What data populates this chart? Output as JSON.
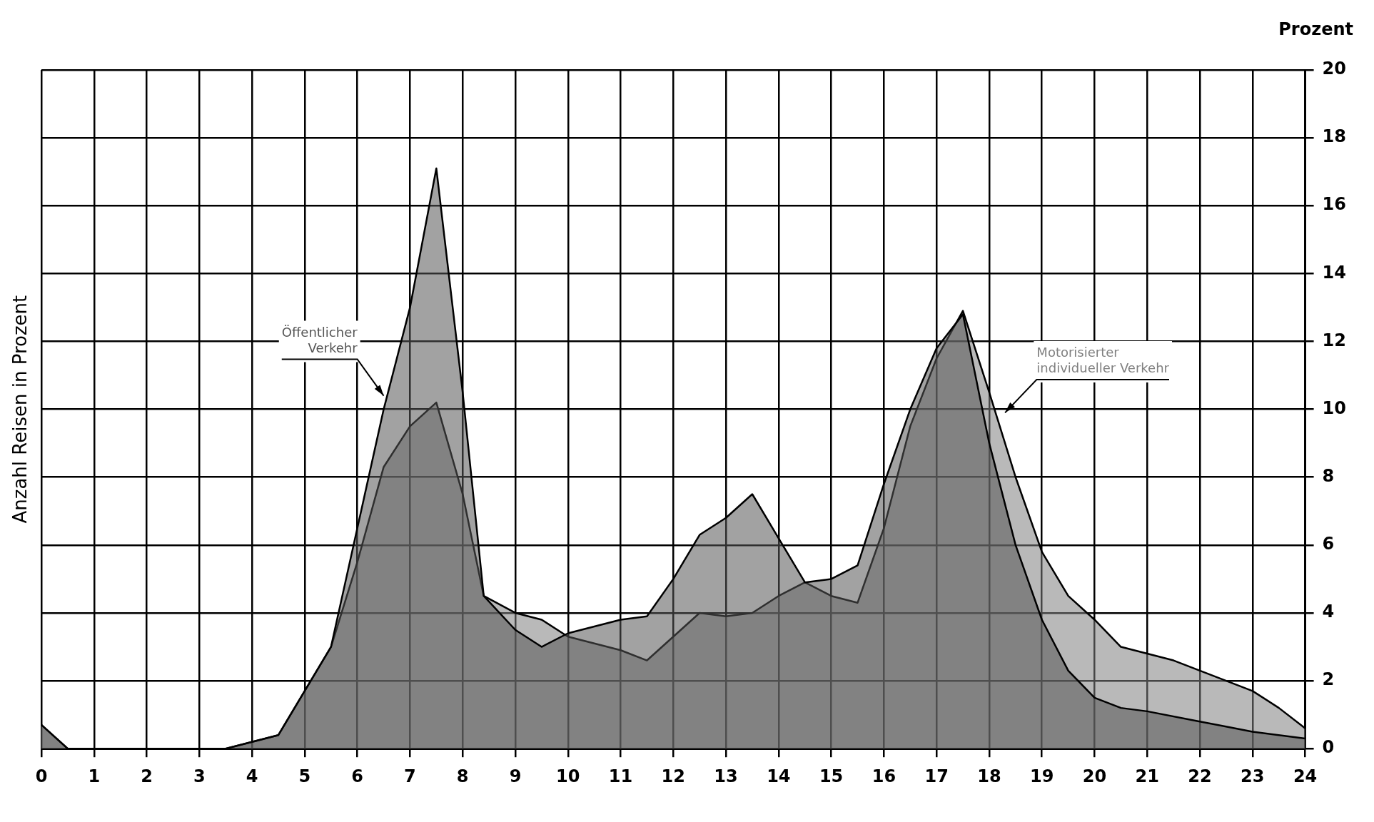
{
  "chart_data": {
    "type": "area",
    "ylabel": "Anzahl Reisen in Prozent",
    "annotations": [
      "Prozent"
    ],
    "xlim": [
      0,
      24
    ],
    "xticks": [
      0,
      1,
      2,
      3,
      4,
      5,
      6,
      7,
      8,
      9,
      10,
      11,
      12,
      13,
      14,
      15,
      16,
      17,
      18,
      19,
      20,
      21,
      22,
      23,
      24
    ],
    "ylim": [
      0,
      20
    ],
    "yticks": [
      0,
      2,
      4,
      6,
      8,
      10,
      12,
      14,
      16,
      18,
      20
    ],
    "grid": true,
    "legend": false,
    "series": [
      {
        "name": "Öffentlicher Verkehr",
        "color": "#555555",
        "x": [
          0,
          0.5,
          1,
          2,
          3,
          3.5,
          4,
          4.5,
          5,
          5.5,
          6,
          6.5,
          7,
          7.5,
          8,
          8.4,
          9,
          9.5,
          10,
          10.5,
          11,
          11.5,
          12,
          12.5,
          13,
          13.5,
          14,
          14.5,
          15,
          15.5,
          16,
          16.5,
          17,
          17.5,
          18,
          18.5,
          19,
          19.5,
          20,
          20.5,
          21,
          22,
          23,
          24
        ],
        "values": [
          0.7,
          0,
          0,
          0,
          0,
          0,
          0.2,
          0.4,
          1.7,
          3,
          6.5,
          10,
          13,
          17.1,
          10.5,
          4.5,
          3.5,
          3.0,
          3.4,
          3.6,
          3.8,
          3.9,
          5,
          6.3,
          6.8,
          7.5,
          6.2,
          4.9,
          5.0,
          5.4,
          7.8,
          10,
          11.8,
          12.8,
          9,
          6,
          3.8,
          2.3,
          1.5,
          1.2,
          1.1,
          0.8,
          0.5,
          0.3
        ]
      },
      {
        "name": "Motorisierter individueller Verkehr",
        "color": "#808080",
        "x": [
          0,
          0.5,
          1,
          2,
          3,
          3.5,
          4,
          4.5,
          5,
          5.5,
          6,
          6.5,
          7,
          7.5,
          8,
          8.4,
          9,
          9.5,
          10,
          10.5,
          11,
          11.5,
          12,
          12.5,
          13,
          13.5,
          14,
          14.5,
          15,
          15.5,
          16,
          16.5,
          17,
          17.5,
          18,
          18.5,
          19,
          19.5,
          20,
          20.5,
          21,
          21.5,
          22,
          22.5,
          23,
          23.5,
          24
        ],
        "values": [
          0.7,
          0,
          0,
          0,
          0,
          0,
          0.2,
          0.4,
          1.7,
          3,
          5.5,
          8.3,
          9.5,
          10.2,
          7.5,
          4.5,
          4.0,
          3.8,
          3.3,
          3.1,
          2.9,
          2.6,
          3.3,
          4.0,
          3.9,
          4.0,
          4.5,
          4.9,
          4.5,
          4.3,
          6.5,
          9.5,
          11.5,
          12.9,
          10.5,
          8,
          5.8,
          4.5,
          3.8,
          3.0,
          2.8,
          2.6,
          2.3,
          2.0,
          1.7,
          1.2,
          0.6
        ]
      }
    ]
  }
}
